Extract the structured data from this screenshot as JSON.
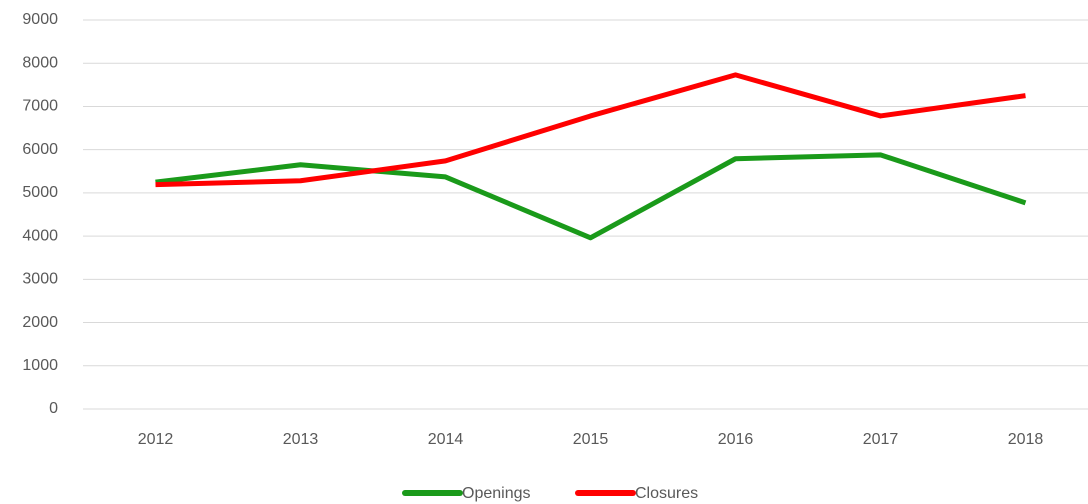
{
  "chart_data": {
    "type": "line",
    "categories": [
      "2012",
      "2013",
      "2014",
      "2015",
      "2016",
      "2017",
      "2018"
    ],
    "series": [
      {
        "name": "Openings",
        "color": "#1a9a1a",
        "values": [
          5250,
          5650,
          5370,
          3960,
          5790,
          5880,
          4770
        ]
      },
      {
        "name": "Closures",
        "color": "#ff0000",
        "values": [
          5190,
          5280,
          5740,
          6780,
          7730,
          6780,
          7250
        ]
      }
    ],
    "ylim": [
      0,
      9000
    ],
    "yticks": [
      0,
      1000,
      2000,
      3000,
      4000,
      5000,
      6000,
      7000,
      8000,
      9000
    ],
    "grid": true,
    "legend": "bottom"
  }
}
